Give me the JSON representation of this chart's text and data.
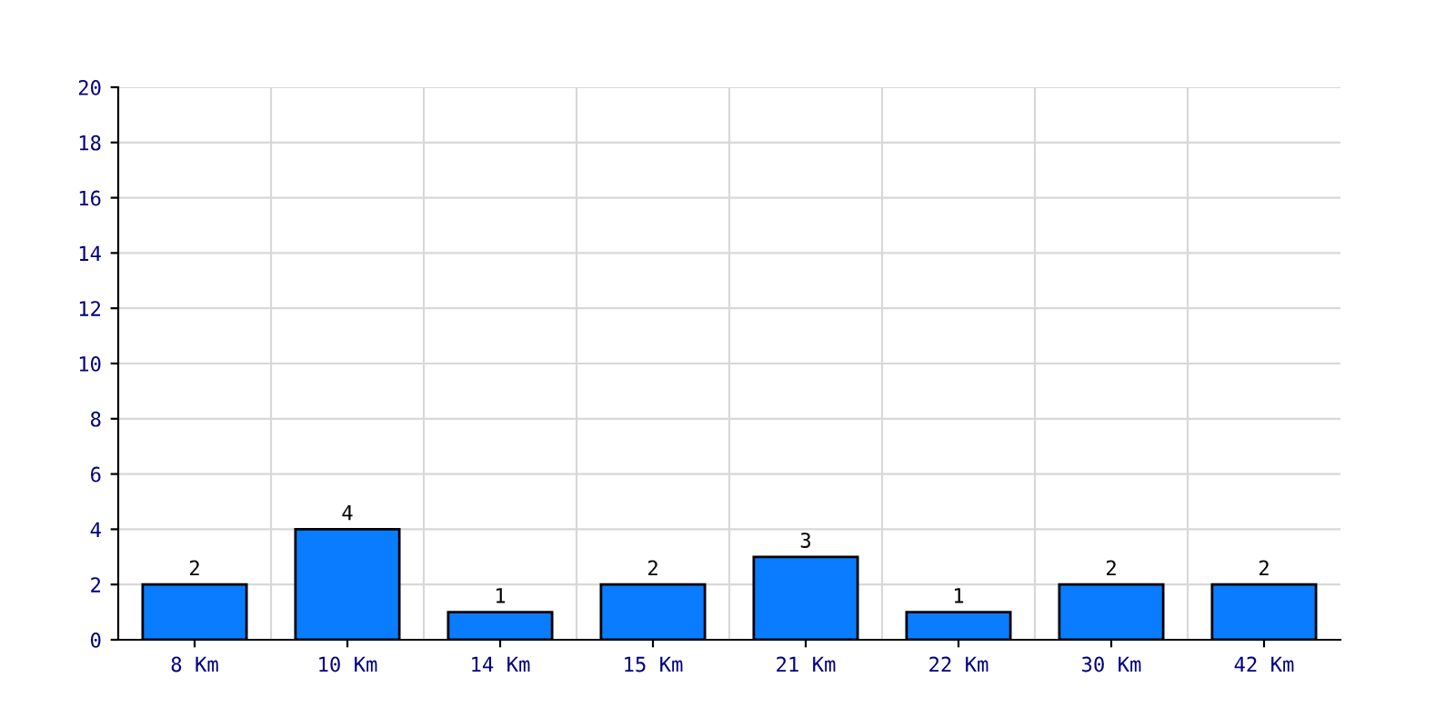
{
  "chart_data": {
    "type": "bar",
    "categories": [
      "8 Km",
      "10 Km",
      "14 Km",
      "15 Km",
      "21 Km",
      "22 Km",
      "30 Km",
      "42 Km"
    ],
    "values": [
      2,
      4,
      1,
      2,
      3,
      1,
      2,
      2
    ],
    "color": "#0a7cff",
    "ylim": [
      0,
      20
    ],
    "yticks": [
      0,
      2,
      4,
      6,
      8,
      10,
      12,
      14,
      16,
      18,
      20
    ],
    "grid": true,
    "data_labels": true
  }
}
